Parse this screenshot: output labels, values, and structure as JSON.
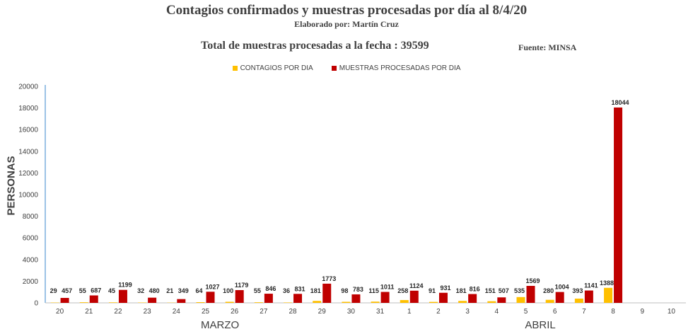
{
  "header": {
    "title": "Contagios confirmados y muestras procesadas por día al 8/4/20",
    "subtitle": "Elaborado por: Martín Cruz",
    "total_text": "Total de muestras procesadas a la fecha : 39599",
    "source_text": "Fuente: MINSA"
  },
  "colors": {
    "contagios": "#FFC000",
    "muestras": "#C00000",
    "axis": "#5B9BD5",
    "text": "#404040"
  },
  "chart_data": {
    "type": "bar",
    "ylabel": "PERSONAS",
    "ylim": [
      0,
      20000
    ],
    "yticks": [
      0,
      2000,
      4000,
      6000,
      8000,
      10000,
      12000,
      14000,
      16000,
      18000,
      20000
    ],
    "categories": [
      "20",
      "21",
      "22",
      "23",
      "24",
      "25",
      "26",
      "27",
      "28",
      "29",
      "30",
      "31",
      "1",
      "2",
      "3",
      "4",
      "5",
      "6",
      "7",
      "8",
      "9",
      "10"
    ],
    "series": [
      {
        "name": "CONTAGIOS POR DIA",
        "values": [
          29,
          55,
          45,
          32,
          21,
          64,
          100,
          55,
          36,
          181,
          98,
          115,
          258,
          91,
          181,
          151,
          535,
          280,
          393,
          1388,
          null,
          null
        ]
      },
      {
        "name": "MUESTRAS PROCESADAS POR DIA",
        "values": [
          457,
          687,
          1199,
          480,
          349,
          1027,
          1179,
          846,
          831,
          1773,
          783,
          1011,
          1124,
          931,
          816,
          507,
          1569,
          1004,
          1141,
          18044,
          null,
          null
        ]
      }
    ],
    "group_labels": [
      {
        "label": "MARZO",
        "from": "20",
        "to": "31"
      },
      {
        "label": "ABRIL",
        "from": "1",
        "to": "10"
      }
    ],
    "legend_position": "top",
    "grid": false
  }
}
